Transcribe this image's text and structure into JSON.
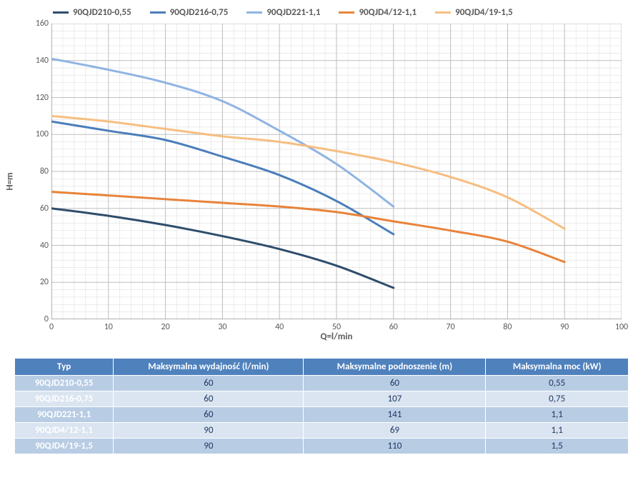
{
  "chart": {
    "type": "line",
    "x_label": "Q=l/min",
    "y_label": "H=m",
    "x_min": 0,
    "x_max": 100,
    "x_tick_step": 10,
    "y_min": 0,
    "y_max": 160,
    "y_tick_step": 20,
    "label_fontsize": 13,
    "tick_fontsize": 12,
    "line_width": 3,
    "background_color": "#ffffff",
    "grid_major_color": "#bfbfbf",
    "grid_minor_color": "#d9d9d9",
    "axis_color": "#808080",
    "x_minor_step": 2,
    "y_minor_step": 4,
    "series": [
      {
        "name": "90QJD210-0,55",
        "color": "#2e4d6b",
        "points": [
          [
            0,
            60
          ],
          [
            10,
            56
          ],
          [
            20,
            51
          ],
          [
            30,
            45
          ],
          [
            40,
            38
          ],
          [
            50,
            29
          ],
          [
            60,
            17
          ]
        ]
      },
      {
        "name": "90QJD216-0,75",
        "color": "#4a7ebb",
        "points": [
          [
            0,
            107
          ],
          [
            10,
            102
          ],
          [
            20,
            97
          ],
          [
            30,
            88
          ],
          [
            40,
            78
          ],
          [
            50,
            64
          ],
          [
            60,
            46
          ]
        ]
      },
      {
        "name": "90QJD221-1,1",
        "color": "#8fb4e3",
        "points": [
          [
            0,
            141
          ],
          [
            10,
            135
          ],
          [
            20,
            128
          ],
          [
            30,
            118
          ],
          [
            40,
            102
          ],
          [
            50,
            84
          ],
          [
            60,
            61
          ]
        ]
      },
      {
        "name": "90QJD4/12-1,1",
        "color": "#e8833a",
        "points": [
          [
            0,
            69
          ],
          [
            10,
            67
          ],
          [
            20,
            65
          ],
          [
            30,
            63
          ],
          [
            40,
            61
          ],
          [
            50,
            58
          ],
          [
            60,
            53
          ],
          [
            70,
            48
          ],
          [
            80,
            42
          ],
          [
            90,
            31
          ]
        ]
      },
      {
        "name": "90QJD4/19-1,5",
        "color": "#f7be81",
        "points": [
          [
            0,
            110
          ],
          [
            10,
            107
          ],
          [
            20,
            103
          ],
          [
            30,
            99
          ],
          [
            40,
            96
          ],
          [
            50,
            91
          ],
          [
            60,
            85
          ],
          [
            70,
            77
          ],
          [
            80,
            66
          ],
          [
            90,
            49
          ]
        ]
      }
    ]
  },
  "table": {
    "header_bg": "#4f81bd",
    "header_fg": "#ffffff",
    "rowheader_bg": "#4f81bd",
    "band_a_bg": "#b8cce4",
    "band_b_bg": "#dbe5f1",
    "columns": [
      "Typ",
      "Maksymalna wydajność (l/min)",
      "Maksymalne podnoszenie (m)",
      "Maksymalna moc (kW)"
    ],
    "rows": [
      [
        "90QJD210-0,55",
        "60",
        "60",
        "0,55"
      ],
      [
        "90QJD216-0,75",
        "60",
        "107",
        "0,75"
      ],
      [
        "90QJD221-1,1",
        "60",
        "141",
        "1,1"
      ],
      [
        "90QJD4/12-1,1",
        "90",
        "69",
        "1,1"
      ],
      [
        "90QJD4/19-1,5",
        "90",
        "110",
        "1,5"
      ]
    ]
  }
}
